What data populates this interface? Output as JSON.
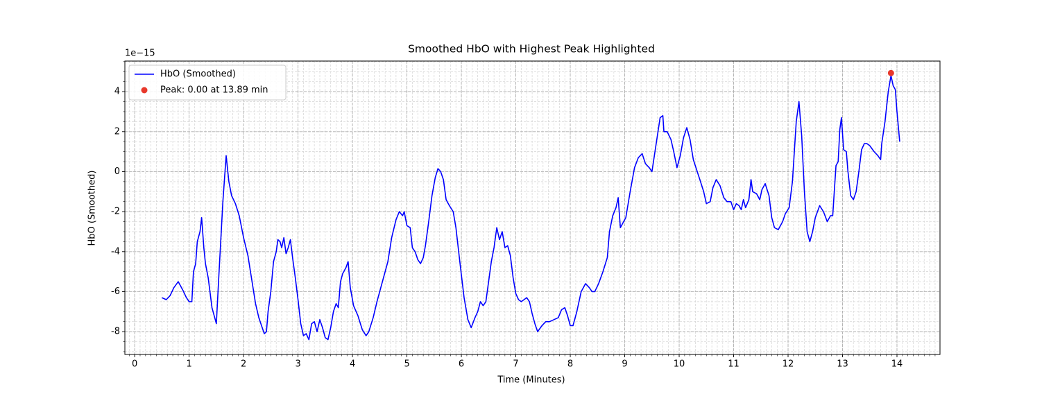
{
  "chart_data": {
    "type": "line",
    "title": "Smoothed HbO with Highest Peak Highlighted",
    "xlabel": "Time (Minutes)",
    "ylabel": "HbO (Smoothed)",
    "offset_text": "1e−15",
    "xlim": [
      -0.18,
      14.79
    ],
    "ylim": [
      -9.14,
      5.53
    ],
    "xticks": [
      0,
      1,
      2,
      3,
      4,
      5,
      6,
      7,
      8,
      9,
      10,
      11,
      12,
      13,
      14
    ],
    "yticks": [
      -8,
      -6,
      -4,
      -2,
      0,
      2,
      4
    ],
    "grid": true,
    "minor_grid": true,
    "xminor_step": 0.1,
    "yminor_step": 0.5,
    "legend": "upper left",
    "series": [
      {
        "name": "HbO (Smoothed)",
        "color": "#0000ff",
        "marker": "line",
        "x": [
          0.5,
          0.58,
          0.65,
          0.72,
          0.8,
          0.88,
          0.95,
          1.0,
          1.05,
          1.08,
          1.12,
          1.15,
          1.2,
          1.23,
          1.27,
          1.3,
          1.35,
          1.42,
          1.5,
          1.55,
          1.62,
          1.68,
          1.73,
          1.78,
          1.85,
          1.92,
          2.0,
          2.08,
          2.15,
          2.22,
          2.28,
          2.33,
          2.38,
          2.42,
          2.45,
          2.5,
          2.55,
          2.6,
          2.63,
          2.67,
          2.7,
          2.74,
          2.78,
          2.82,
          2.86,
          2.9,
          2.95,
          3.0,
          3.05,
          3.1,
          3.15,
          3.2,
          3.25,
          3.3,
          3.35,
          3.4,
          3.45,
          3.5,
          3.55,
          3.6,
          3.65,
          3.7,
          3.74,
          3.78,
          3.82,
          3.88,
          3.92,
          3.96,
          4.02,
          4.1,
          4.18,
          4.25,
          4.3,
          4.38,
          4.45,
          4.52,
          4.6,
          4.65,
          4.72,
          4.8,
          4.86,
          4.92,
          4.95,
          5.0,
          5.06,
          5.1,
          5.15,
          5.2,
          5.25,
          5.3,
          5.34,
          5.4,
          5.46,
          5.52,
          5.57,
          5.62,
          5.67,
          5.72,
          5.78,
          5.85,
          5.9,
          5.98,
          6.05,
          6.12,
          6.18,
          6.25,
          6.3,
          6.35,
          6.4,
          6.45,
          6.5,
          6.55,
          6.6,
          6.65,
          6.7,
          6.75,
          6.8,
          6.85,
          6.9,
          6.95,
          7.0,
          7.05,
          7.1,
          7.15,
          7.2,
          7.25,
          7.3,
          7.35,
          7.4,
          7.48,
          7.55,
          7.62,
          7.7,
          7.78,
          7.84,
          7.9,
          7.95,
          8.0,
          8.05,
          8.12,
          8.2,
          8.28,
          8.35,
          8.4,
          8.45,
          8.52,
          8.6,
          8.68,
          8.72,
          8.78,
          8.84,
          8.88,
          8.92,
          8.96,
          9.02,
          9.1,
          9.18,
          9.25,
          9.32,
          9.38,
          9.45,
          9.5,
          9.55,
          9.6,
          9.65,
          9.7,
          9.72,
          9.78,
          9.85,
          9.9,
          9.96,
          10.02,
          10.08,
          10.14,
          10.2,
          10.26,
          10.32,
          10.38,
          10.45,
          10.5,
          10.57,
          10.62,
          10.68,
          10.75,
          10.82,
          10.88,
          10.95,
          11.0,
          11.05,
          11.1,
          11.14,
          11.18,
          11.22,
          11.28,
          11.32,
          11.35,
          11.42,
          11.48,
          11.52,
          11.58,
          11.65,
          11.7,
          11.75,
          11.82,
          11.9,
          11.95,
          12.02,
          12.08,
          12.15,
          12.2,
          12.25,
          12.3,
          12.35,
          12.4,
          12.45,
          12.5,
          12.58,
          12.65,
          12.72,
          12.78,
          12.82,
          12.88,
          12.92,
          12.95,
          12.98,
          13.02,
          13.07,
          13.1,
          13.15,
          13.2,
          13.25,
          13.3,
          13.35,
          13.4,
          13.45,
          13.5,
          13.58,
          13.65,
          13.7,
          13.72,
          13.78,
          13.84,
          13.89,
          13.93,
          13.97,
          14.0,
          14.05
        ],
        "values": [
          -6.3,
          -6.4,
          -6.2,
          -5.8,
          -5.5,
          -5.9,
          -6.3,
          -6.5,
          -6.5,
          -5.0,
          -4.6,
          -3.5,
          -3.0,
          -2.3,
          -3.8,
          -4.6,
          -5.3,
          -6.8,
          -7.6,
          -5.0,
          -1.5,
          0.8,
          -0.5,
          -1.2,
          -1.6,
          -2.2,
          -3.3,
          -4.2,
          -5.4,
          -6.6,
          -7.3,
          -7.7,
          -8.1,
          -8.0,
          -7.0,
          -6.0,
          -4.5,
          -4.0,
          -3.4,
          -3.5,
          -3.8,
          -3.3,
          -4.1,
          -3.8,
          -3.4,
          -4.3,
          -5.3,
          -6.4,
          -7.6,
          -8.2,
          -8.1,
          -8.4,
          -7.6,
          -7.5,
          -8.0,
          -7.4,
          -7.8,
          -8.3,
          -8.4,
          -7.8,
          -7.0,
          -6.6,
          -6.8,
          -5.5,
          -5.1,
          -4.8,
          -4.5,
          -5.8,
          -6.7,
          -7.2,
          -7.9,
          -8.2,
          -8.0,
          -7.3,
          -6.5,
          -5.8,
          -5.0,
          -4.5,
          -3.3,
          -2.4,
          -2.0,
          -2.2,
          -2.0,
          -2.7,
          -2.8,
          -3.8,
          -4.0,
          -4.4,
          -4.6,
          -4.3,
          -3.7,
          -2.5,
          -1.2,
          -0.3,
          0.15,
          0.0,
          -0.4,
          -1.4,
          -1.7,
          -2.0,
          -2.8,
          -4.7,
          -6.3,
          -7.4,
          -7.8,
          -7.3,
          -7.0,
          -6.5,
          -6.7,
          -6.5,
          -5.5,
          -4.5,
          -3.8,
          -2.8,
          -3.4,
          -3.0,
          -3.8,
          -3.7,
          -4.2,
          -5.3,
          -6.1,
          -6.4,
          -6.5,
          -6.4,
          -6.3,
          -6.5,
          -7.1,
          -7.6,
          -8.0,
          -7.7,
          -7.5,
          -7.5,
          -7.4,
          -7.3,
          -6.9,
          -6.8,
          -7.2,
          -7.7,
          -7.7,
          -7.0,
          -6.0,
          -5.6,
          -5.8,
          -6.0,
          -6.0,
          -5.6,
          -5.0,
          -4.3,
          -3.0,
          -2.2,
          -1.8,
          -1.3,
          -2.8,
          -2.6,
          -2.3,
          -1.0,
          0.2,
          0.7,
          0.9,
          0.4,
          0.2,
          0.0,
          0.9,
          1.8,
          2.7,
          2.8,
          2.0,
          2.0,
          1.6,
          1.0,
          0.2,
          0.8,
          1.7,
          2.2,
          1.6,
          0.6,
          0.1,
          -0.4,
          -1.0,
          -1.6,
          -1.5,
          -0.8,
          -0.4,
          -0.7,
          -1.3,
          -1.5,
          -1.5,
          -1.9,
          -1.6,
          -1.7,
          -1.9,
          -1.4,
          -1.8,
          -1.4,
          -0.4,
          -1.0,
          -1.1,
          -1.4,
          -0.9,
          -0.6,
          -1.2,
          -2.3,
          -2.8,
          -2.9,
          -2.5,
          -2.1,
          -1.8,
          -0.5,
          2.5,
          3.5,
          1.8,
          -1.0,
          -3.0,
          -3.5,
          -3.0,
          -2.3,
          -1.7,
          -2.0,
          -2.5,
          -2.2,
          -2.2,
          0.3,
          0.5,
          2.1,
          2.7,
          1.1,
          1.0,
          0.0,
          -1.2,
          -1.4,
          -1.0,
          0.0,
          1.1,
          1.4,
          1.4,
          1.3,
          1.0,
          0.8,
          0.6,
          1.4,
          2.5,
          4.0,
          4.8,
          4.3,
          4.1,
          3.0,
          1.5
        ]
      },
      {
        "name": "Peak: 0.00 at 13.89 min",
        "color": "#e8382b",
        "marker": "dot",
        "x": [
          13.89
        ],
        "values": [
          4.93
        ]
      }
    ]
  }
}
